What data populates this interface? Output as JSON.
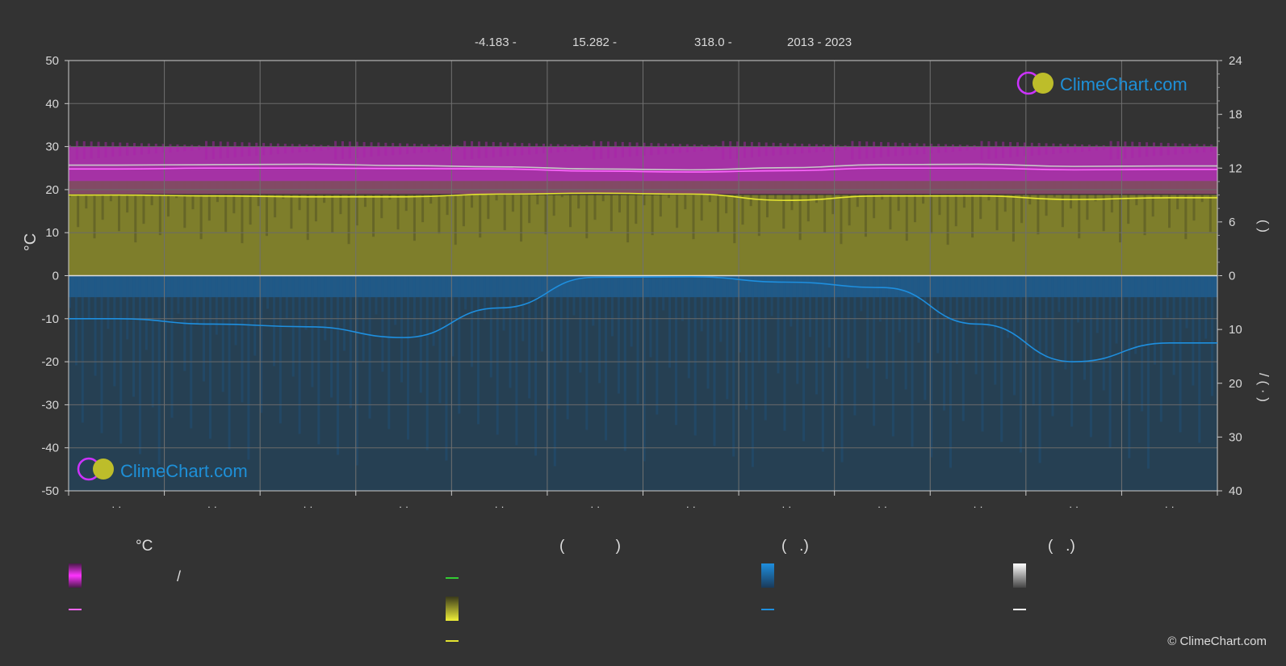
{
  "header": {
    "lat": "-4.183 -",
    "lon": "15.282 -",
    "elev": "318.0 -",
    "years": "2013 - 2023"
  },
  "chart_data": {
    "type": "area",
    "y_left": {
      "label": "°C",
      "range": [
        -50,
        50
      ],
      "ticks": [
        50,
        40,
        30,
        20,
        10,
        0,
        -10,
        -20,
        -30,
        -40,
        -50
      ]
    },
    "y_right_top": {
      "label": "(   )",
      "range": [
        0,
        24
      ],
      "ticks": [
        24,
        18,
        12,
        6,
        0
      ]
    },
    "y_right_bottom": {
      "label": "/   (  ·  )",
      "range": [
        0,
        40
      ],
      "ticks": [
        0,
        10,
        20,
        30,
        40
      ]
    },
    "x_tick_labels": [
      "· ·",
      "· ·",
      "· ·",
      "· ·",
      "· ·",
      "· ·",
      "· ·",
      "· ·",
      "· ·",
      "· ·",
      "· ·",
      "· ·"
    ],
    "months": 12,
    "series": [
      {
        "key": "temp_max_mean",
        "color": "#c8c8c8",
        "values": [
          25.7,
          25.8,
          25.9,
          25.6,
          25.3,
          24.8,
          24.6,
          25.1,
          25.8,
          25.9,
          25.4,
          25.5
        ]
      },
      {
        "key": "temp_daily_mean",
        "color": "#ff66ff",
        "values": [
          24.8,
          25.0,
          25.0,
          24.9,
          24.8,
          24.3,
          24.1,
          24.4,
          25.0,
          25.0,
          24.6,
          24.7
        ]
      },
      {
        "key": "sunshine_hours",
        "color": "#e4e431",
        "values": [
          9.0,
          8.9,
          8.8,
          8.8,
          9.1,
          9.2,
          9.1,
          8.4,
          8.9,
          8.9,
          8.5,
          8.7
        ]
      },
      {
        "key": "precipitation_mm",
        "color": "#1e8fdf",
        "values": [
          8.0,
          9.0,
          9.5,
          11.5,
          6.0,
          0.3,
          0.2,
          1.2,
          2.2,
          9.0,
          16.0,
          12.5
        ]
      }
    ],
    "bands": {
      "temp_range": {
        "low": 19,
        "high": 30,
        "color": "#cc33cc"
      },
      "sunshine_fill_to": 9,
      "precip_fill_to": 40
    },
    "watermark": "ClimeChart.com"
  },
  "legend": {
    "col1": {
      "title": "°C",
      "row1": "/"
    },
    "col2": {
      "title": "(            )"
    },
    "col3": {
      "title": "(   .)"
    },
    "col4": {
      "title": "(   .)"
    }
  },
  "brand": {
    "top": "ClimeChart.com",
    "bottom": "ClimeChart.com"
  },
  "copyright": "© ClimeChart.com",
  "colors": {
    "magenta": "#e633e6",
    "yellow": "#e4e431",
    "blue": "#1e8fdf",
    "white": "#ffffff",
    "green": "#33cc33"
  }
}
